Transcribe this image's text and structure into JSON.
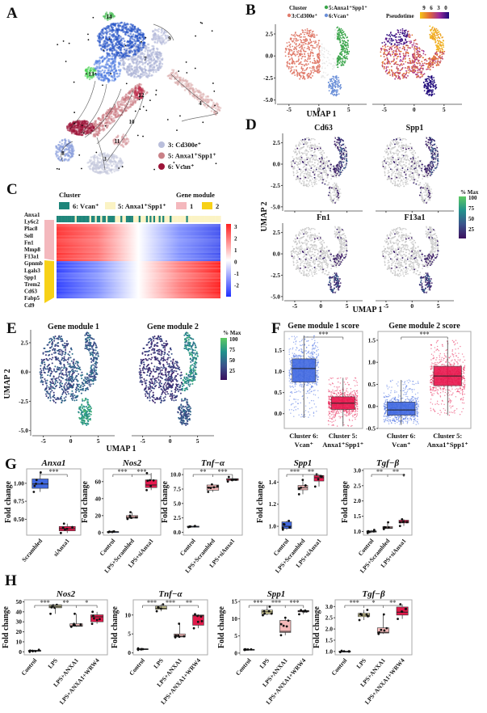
{
  "panel_labels": {
    "A": "A",
    "B": "B",
    "C": "C",
    "D": "D",
    "E": "E",
    "F": "F",
    "G": "G",
    "H": "H"
  },
  "umap_axes": {
    "xlabel": "UMAP 1",
    "ylabel": "UMAP 2",
    "x_ticks": [
      "-5",
      "0",
      "5"
    ],
    "y_ticks": [
      "2.5",
      "0.0",
      "-2.5",
      "-5.0"
    ]
  },
  "panel_a": {
    "cluster_numbers": [
      "14",
      "9",
      "7",
      "13",
      "12",
      "4",
      "10",
      "11",
      "8",
      "3"
    ],
    "legend": [
      {
        "label": "3: Cd300e⁺",
        "color": "#b9bedb"
      },
      {
        "label": "5: Anxa1⁺Spp1⁺",
        "color": "#c98087"
      },
      {
        "label": "6: Vcan⁺",
        "color": "#9c1438"
      }
    ]
  },
  "panel_b": {
    "cluster_title": "Cluster",
    "clusters": [
      {
        "label": "5:Anxa1⁺Spp1⁺",
        "color": "#3aa54a"
      },
      {
        "label": "3:Cd300e⁺",
        "color": "#e07b6b"
      },
      {
        "label": "6:Vcan⁺",
        "color": "#6a8fd8"
      }
    ],
    "pseudotime_title": "Pseudotime",
    "pseudotime_ticks": [
      "9",
      "6",
      "3",
      "0"
    ],
    "pseudotime_colors": [
      "#f5c518",
      "#e0683a",
      "#9b2a9b",
      "#1a0a7a"
    ]
  },
  "panel_c": {
    "cluster_title": "Cluster",
    "clusters": [
      {
        "label": "6: Vcan⁺",
        "color": "#1e857a"
      },
      {
        "label": "5: Anxa1⁺Spp1⁺",
        "color": "#fbf3c4"
      }
    ],
    "module_title": "Gene module",
    "modules": [
      {
        "label": "1",
        "color": "#f4b8bd"
      },
      {
        "label": "2",
        "color": "#f7d117"
      }
    ],
    "genes": [
      "Anxa1",
      "Ly6c2",
      "Plac8",
      "Sell",
      "Fn1",
      "Mmp8",
      "F13a1",
      "Gpnmb",
      "Lgals3",
      "Spp1",
      "Trem2",
      "Cd63",
      "Fabp5",
      "Cd9"
    ],
    "scale_ticks": [
      "3",
      "2",
      "1",
      "0",
      "-1",
      "-2"
    ],
    "scale_colors": [
      "#ff2020",
      "#ffffff",
      "#2030ff"
    ]
  },
  "panel_d": {
    "genes": [
      "Cd63",
      "Spp1",
      "Fn1",
      "F13a1"
    ],
    "colorbar_title": "% Max",
    "colorbar_ticks": [
      "100",
      "75",
      "50",
      "25"
    ]
  },
  "panel_e": {
    "titles": [
      "Gene module 1",
      "Gene module 2"
    ],
    "colorbar_title": "% Max",
    "colorbar_ticks": [
      "100",
      "75",
      "50",
      "25"
    ]
  },
  "chart_data": [
    {
      "id": "F1",
      "type": "box",
      "title": "Gene module 1 score",
      "ylabel": "",
      "ylim": [
        -0.35,
        1.95
      ],
      "yticks": [
        "0.0",
        "0.5",
        "1.0",
        "1.5"
      ],
      "groups": [
        {
          "label": [
            "Cluster 6:",
            "Vcan⁺"
          ],
          "color": "#4169e1",
          "stats": [
            -0.1,
            0.75,
            1.07,
            1.3,
            1.85
          ]
        },
        {
          "label": [
            "Cluster 5:",
            "Anxa1⁺Spp1⁺"
          ],
          "color": "#e8194f",
          "stats": [
            -0.3,
            0.1,
            0.25,
            0.4,
            0.85
          ]
        }
      ],
      "significance": [
        "***"
      ]
    },
    {
      "id": "F2",
      "type": "box",
      "title": "Gene module 2 score",
      "ylabel": "",
      "ylim": [
        -0.5,
        1.7
      ],
      "yticks": [
        "-0.5",
        "0.0",
        "0.5",
        "1.0",
        "1.5"
      ],
      "groups": [
        {
          "label": [
            "Cluster 6:",
            "Vcan⁺"
          ],
          "color": "#4169e1",
          "stats": [
            -0.42,
            -0.2,
            -0.08,
            0.1,
            0.6
          ]
        },
        {
          "label": [
            "Cluster 5:",
            "Anxa1⁺Spp1⁺"
          ],
          "color": "#e8194f",
          "stats": [
            -0.2,
            0.47,
            0.69,
            0.91,
            1.5
          ]
        }
      ],
      "significance": [
        "***"
      ]
    },
    {
      "id": "G1",
      "type": "box",
      "title": "Anxa1",
      "ylabel": "Fold change",
      "ylim": [
        0.28,
        1.2
      ],
      "yticks": [
        "0.50",
        "0.75",
        "1.00"
      ],
      "groups": [
        {
          "label": [
            "Scrambled"
          ],
          "color": "#4169e1",
          "stats": [
            0.88,
            0.93,
            0.99,
            1.06,
            1.15
          ]
        },
        {
          "label": [
            "siAnxa1"
          ],
          "color": "#e8194f",
          "stats": [
            0.31,
            0.34,
            0.37,
            0.4,
            0.44
          ]
        }
      ],
      "significance": [
        "***"
      ]
    },
    {
      "id": "G2",
      "type": "box",
      "title": "Nos2",
      "ylabel": "Fold change",
      "ylim": [
        -3,
        75
      ],
      "yticks": [
        "0",
        "20",
        "40",
        "60"
      ],
      "groups": [
        {
          "label": [
            "Control"
          ],
          "color": "#4169e1",
          "stats": [
            0.5,
            0.8,
            1,
            1.2,
            1.5
          ]
        },
        {
          "label": [
            "LPS+Scrambled"
          ],
          "color": "#f4b8b8",
          "stats": [
            16,
            17,
            18,
            20,
            24
          ]
        },
        {
          "label": [
            "LPS+siAnxa1"
          ],
          "color": "#e8194f",
          "stats": [
            50,
            53,
            56,
            62,
            70
          ]
        }
      ],
      "significance": [
        "***",
        "***"
      ]
    },
    {
      "id": "G3",
      "type": "box",
      "title": "Tnf−α",
      "ylabel": "Fold change",
      "ylim": [
        -0.5,
        11
      ],
      "yticks": [
        "0.0",
        "2.5",
        "5.0",
        "7.5",
        "10.0"
      ],
      "groups": [
        {
          "label": [
            "Control"
          ],
          "color": "#4169e1",
          "stats": [
            0.9,
            0.95,
            1.0,
            1.05,
            1.1
          ]
        },
        {
          "label": [
            "LPS+Scrambled"
          ],
          "color": "#f4b8b8",
          "stats": [
            7.0,
            7.3,
            7.8,
            8.2,
            8.3
          ]
        },
        {
          "label": [
            "LPS+siAnxa1"
          ],
          "color": "#e8194f",
          "stats": [
            8.8,
            9.0,
            9.2,
            9.3,
            9.6
          ]
        }
      ],
      "significance": [
        "**",
        "***"
      ]
    },
    {
      "id": "G4",
      "type": "box",
      "title": "Spp1",
      "ylabel": "Fold change",
      "ylim": [
        0.92,
        1.52
      ],
      "yticks": [
        "1.0",
        "1.2",
        "1.4"
      ],
      "groups": [
        {
          "label": [
            "Control"
          ],
          "color": "#4169e1",
          "stats": [
            0.97,
            0.98,
            1.0,
            1.04,
            1.05
          ]
        },
        {
          "label": [
            "LPS+Scrambled"
          ],
          "color": "#f4b8b8",
          "stats": [
            1.29,
            1.33,
            1.35,
            1.37,
            1.42
          ]
        },
        {
          "label": [
            "LPS+siAnxa1"
          ],
          "color": "#e8194f",
          "stats": [
            1.36,
            1.41,
            1.44,
            1.46,
            1.47
          ]
        }
      ],
      "significance": [
        "***",
        "**"
      ]
    },
    {
      "id": "G5",
      "type": "box",
      "title": "Tgf−β",
      "ylabel": "Fold change",
      "ylim": [
        0.88,
        3.05
      ],
      "yticks": [
        "1.0",
        "1.5",
        "2.0",
        "2.5",
        "3.0"
      ],
      "groups": [
        {
          "label": [
            "Control"
          ],
          "color": "#4169e1",
          "stats": [
            0.95,
            0.98,
            1.0,
            1.02,
            1.05
          ]
        },
        {
          "label": [
            "LPS+Scrambled"
          ],
          "color": "#f4b8b8",
          "stats": [
            1.08,
            1.1,
            1.12,
            1.16,
            1.3
          ]
        },
        {
          "label": [
            "LPS+siAnxa1"
          ],
          "color": "#e8194f",
          "stats": [
            1.18,
            1.28,
            1.32,
            1.37,
            1.4
          ],
          "outliers": [
            2.85
          ]
        }
      ],
      "significance": [
        "**",
        "**"
      ]
    },
    {
      "id": "H1",
      "type": "box",
      "title": "Nos2",
      "ylabel": "Fold change",
      "ylim": [
        -3,
        52
      ],
      "yticks": [
        "0",
        "10",
        "20",
        "30",
        "40",
        "50"
      ],
      "groups": [
        {
          "label": [
            "Control"
          ],
          "color": "#2b3a8c",
          "stats": [
            0,
            0.5,
            1,
            1.5,
            2
          ]
        },
        {
          "label": [
            "LPS"
          ],
          "color": "#e5dfa0",
          "stats": [
            38,
            44,
            45,
            47,
            47
          ]
        },
        {
          "label": [
            "LPS+ANXA1"
          ],
          "color": "#f4b8b8",
          "stats": [
            25,
            25.5,
            26,
            28,
            38
          ]
        },
        {
          "label": [
            "LPS+ANXA1+WRW4"
          ],
          "color": "#e0194a",
          "stats": [
            28,
            30,
            35,
            37,
            40
          ]
        }
      ],
      "significance": [
        "***",
        "**",
        "*"
      ]
    },
    {
      "id": "H2",
      "type": "box",
      "title": "Tnf−α",
      "ylabel": "Fold change",
      "ylim": [
        -0.5,
        14
      ],
      "yticks": [
        "0",
        "5",
        "10"
      ],
      "groups": [
        {
          "label": [
            "Control"
          ],
          "color": "#2b3a8c",
          "stats": [
            0.8,
            0.9,
            1.0,
            1.1,
            1.2
          ]
        },
        {
          "label": [
            "LPS"
          ],
          "color": "#e5dfa0",
          "stats": [
            11,
            11.5,
            11.8,
            12.3,
            12.8
          ]
        },
        {
          "label": [
            "LPS+ANXA1"
          ],
          "color": "#f4b8b8",
          "stats": [
            4.1,
            4.2,
            4.4,
            5.0,
            7.7
          ]
        },
        {
          "label": [
            "LPS+ANXA1+WRW4"
          ],
          "color": "#e0194a",
          "stats": [
            6.5,
            7.3,
            9.8,
            10.0,
            10.2
          ]
        }
      ],
      "significance": [
        "***",
        "***",
        "**"
      ]
    },
    {
      "id": "H3",
      "type": "box",
      "title": "Spp1",
      "ylabel": "Fold change",
      "ylim": [
        -0.5,
        15.5
      ],
      "yticks": [
        "0",
        "5",
        "10",
        "15"
      ],
      "groups": [
        {
          "label": [
            "Control"
          ],
          "color": "#2b3a8c",
          "stats": [
            0.9,
            1.0,
            1.0,
            1.1,
            1.1
          ]
        },
        {
          "label": [
            "LPS"
          ],
          "color": "#e5dfa0",
          "stats": [
            11,
            11.4,
            12,
            12.5,
            13.5
          ]
        },
        {
          "label": [
            "LPS+ANXA1"
          ],
          "color": "#f4b8b8",
          "stats": [
            5.2,
            6.0,
            6.3,
            9.5,
            10.3
          ]
        },
        {
          "label": [
            "LPS+ANXA1+WRW4"
          ],
          "color": "#e0194a",
          "stats": [
            11.3,
            12,
            12.2,
            12.4,
            12.5
          ]
        }
      ],
      "significance": [
        "***",
        "***",
        "***"
      ]
    },
    {
      "id": "H4",
      "type": "box",
      "title": "Tgf−β",
      "ylabel": "Fold change",
      "ylim": [
        0.85,
        3.3
      ],
      "yticks": [
        "1.0",
        "1.5",
        "2.0",
        "2.5",
        "3.0"
      ],
      "groups": [
        {
          "label": [
            "Control"
          ],
          "color": "#2b3a8c",
          "stats": [
            0.97,
            0.99,
            1.0,
            1.01,
            1.03
          ]
        },
        {
          "label": [
            "LPS"
          ],
          "color": "#e5dfa0",
          "stats": [
            2.4,
            2.55,
            2.62,
            2.7,
            2.85
          ]
        },
        {
          "label": [
            "LPS+ANXA1"
          ],
          "color": "#f4b8b8",
          "stats": [
            1.78,
            1.82,
            1.85,
            2.05,
            2.65
          ]
        },
        {
          "label": [
            "LPS+ANXA1+WRW4"
          ],
          "color": "#e0194a",
          "stats": [
            2.45,
            2.62,
            2.75,
            2.98,
            3.1
          ]
        }
      ],
      "significance": [
        "***",
        "*",
        "**"
      ]
    }
  ]
}
